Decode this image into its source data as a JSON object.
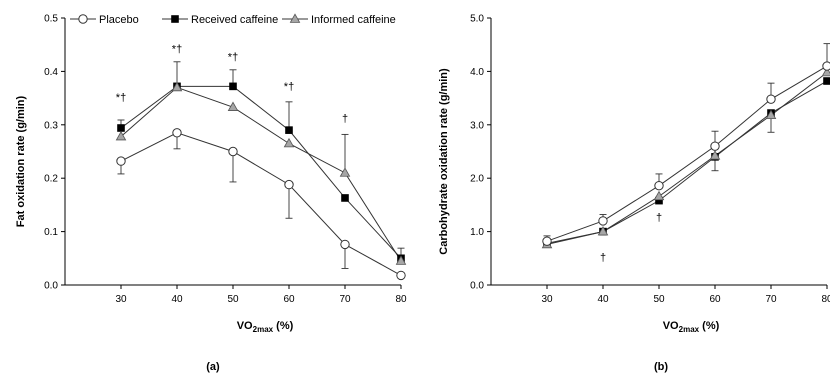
{
  "chart_data": [
    {
      "type": "line",
      "panel_label": "(a)",
      "ylabel": "Fat oxidation rate (g/min)",
      "xlabel": "VO2max (%)",
      "xlabel_parts": {
        "base": "VO",
        "sub": "2max",
        "rest": " (%)"
      },
      "x": [
        30,
        40,
        50,
        60,
        70,
        80
      ],
      "xlim": [
        20,
        80
      ],
      "ylim": [
        0,
        0.5
      ],
      "yticks": [
        "0.0",
        "0.1",
        "0.2",
        "0.3",
        "0.4",
        "0.5"
      ],
      "xticks": [
        "30",
        "40",
        "50",
        "60",
        "70",
        "80"
      ],
      "legend": {
        "position": "top",
        "entries": [
          "Placebo",
          "Received caffeine",
          "Informed caffeine"
        ]
      },
      "series": [
        {
          "name": "Placebo",
          "marker": "circle-open",
          "values": [
            0.232,
            0.285,
            0.25,
            0.188,
            0.076,
            0.018
          ],
          "err_up": [
            0,
            0,
            0,
            0,
            0,
            0
          ],
          "err_down": [
            0.024,
            0.03,
            0.057,
            0.063,
            0.045,
            0
          ]
        },
        {
          "name": "Received caffeine",
          "marker": "square-filled",
          "values": [
            0.294,
            0.372,
            0.372,
            0.29,
            0.163,
            0.05
          ],
          "err_up": [
            0.015,
            0.046,
            0.031,
            0.053,
            0,
            0.019
          ],
          "err_down": [
            0,
            0,
            0,
            0,
            0,
            0
          ]
        },
        {
          "name": "Informed caffeine",
          "marker": "triangle-gray",
          "values": [
            0.278,
            0.37,
            0.333,
            0.265,
            0.21,
            0.045
          ],
          "err_up": [
            0,
            0,
            0,
            0,
            0.072,
            0
          ],
          "err_down": [
            0,
            0,
            0,
            0,
            0,
            0
          ]
        }
      ],
      "annotations": [
        {
          "x": 30,
          "y": 0.345,
          "text": "*†"
        },
        {
          "x": 40,
          "y": 0.435,
          "text": "*†"
        },
        {
          "x": 50,
          "y": 0.42,
          "text": "*†"
        },
        {
          "x": 60,
          "y": 0.365,
          "text": "*†"
        },
        {
          "x": 70,
          "y": 0.305,
          "text": "†"
        }
      ]
    },
    {
      "type": "line",
      "panel_label": "(b)",
      "ylabel": "Carbohydrate oxidation rate (g/min)",
      "xlabel": "VO2max (%)",
      "xlabel_parts": {
        "base": "VO",
        "sub": "2max",
        "rest": " (%)"
      },
      "x": [
        30,
        40,
        50,
        60,
        70,
        80
      ],
      "xlim": [
        20,
        80
      ],
      "ylim": [
        0,
        5
      ],
      "yticks": [
        "0.0",
        "1.0",
        "2.0",
        "3.0",
        "4.0",
        "5.0"
      ],
      "xticks": [
        "30",
        "40",
        "50",
        "60",
        "70",
        "80"
      ],
      "series": [
        {
          "name": "Placebo",
          "marker": "circle-open",
          "values": [
            0.82,
            1.2,
            1.86,
            2.6,
            3.48,
            4.1
          ],
          "err_up": [
            0.1,
            0.12,
            0.22,
            0.28,
            0.3,
            0.42
          ],
          "err_down": [
            0,
            0,
            0,
            0,
            0,
            0
          ]
        },
        {
          "name": "Received caffeine",
          "marker": "square-filled",
          "values": [
            0.78,
            1.0,
            1.58,
            2.4,
            3.22,
            3.82
          ],
          "err_up": [
            0,
            0,
            0,
            0,
            0,
            0
          ],
          "err_down": [
            0,
            0,
            0,
            0,
            0,
            0
          ]
        },
        {
          "name": "Informed caffeine",
          "marker": "triangle-gray",
          "values": [
            0.76,
            1.0,
            1.66,
            2.42,
            3.18,
            3.98
          ],
          "err_up": [
            0,
            0,
            0,
            0,
            0,
            0
          ],
          "err_down": [
            0,
            0.06,
            0.12,
            0.28,
            0.32,
            0
          ]
        }
      ],
      "annotations": [
        {
          "x": 40,
          "y": 0.45,
          "text": "†"
        },
        {
          "x": 50,
          "y": 1.2,
          "text": "†"
        }
      ]
    }
  ]
}
